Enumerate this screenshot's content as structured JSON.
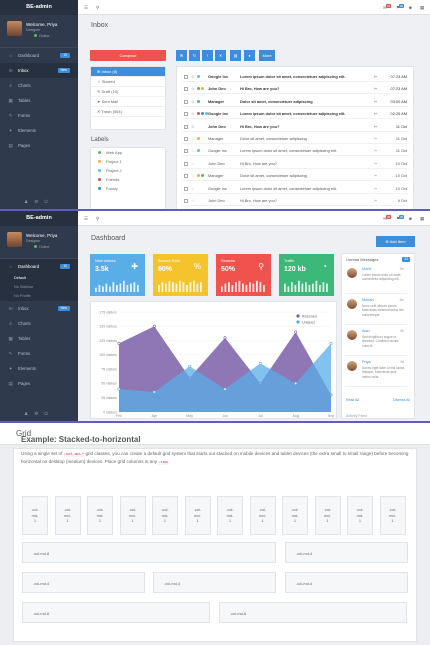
{
  "brand": "BE-admin",
  "user": {
    "name": "Welcome, Priya",
    "role": "Designer",
    "status": "Online"
  },
  "top_icons": [
    "menu-icon",
    "search-icon",
    "mail-icon",
    "bell-icon",
    "user-icon",
    "grid-icon"
  ],
  "top_badges": [
    "99",
    "99"
  ],
  "nav": [
    {
      "label": "Dashboard",
      "badge": "10",
      "icon": "dashboard-icon"
    },
    {
      "label": "Inbox",
      "badge": "New",
      "icon": "inbox-icon"
    },
    {
      "label": "Charts",
      "badge": "",
      "icon": "chart-icon"
    },
    {
      "label": "Tables",
      "badge": "",
      "icon": "table-icon"
    },
    {
      "label": "Forms",
      "badge": "",
      "icon": "form-icon"
    },
    {
      "label": "Elements",
      "badge": "",
      "icon": "elements-icon"
    },
    {
      "label": "Pages",
      "badge": "",
      "icon": "pages-icon"
    }
  ],
  "dashboard_sub": [
    "Default",
    "No Sidebar",
    "No Profile"
  ],
  "inbox": {
    "title": "Inbox",
    "compose": "Compose",
    "more": "More",
    "folders": [
      {
        "label": "Inbox (8)"
      },
      {
        "label": "Starred"
      },
      {
        "label": "Draft (10)"
      },
      {
        "label": "Sent Mail"
      },
      {
        "label": "Trash (554)"
      }
    ],
    "labels_title": "Labels",
    "labels": [
      {
        "label": "Web App",
        "color": "#5cb85c"
      },
      {
        "label": "Project 1",
        "color": "#f0ad4e"
      },
      {
        "label": "Project 2",
        "color": "#5bc0de"
      },
      {
        "label": "Friends",
        "color": "#d9534f"
      },
      {
        "label": "Family",
        "color": "#3c8ddb"
      }
    ],
    "messages": [
      {
        "sender": "Google Inc",
        "subject": "Lorem ipsum dolor sit amet, consectetuer adipiscing elit.",
        "time": "07:23 AM",
        "unread": true,
        "tags": [
          "#5bc0de"
        ]
      },
      {
        "sender": "John Deo",
        "subject": "Hi Bro, How are you?",
        "time": "07:23 AM",
        "unread": true,
        "tags": [
          "#5cb85c",
          "#f0ad4e"
        ]
      },
      {
        "sender": "Manager",
        "subject": "Dolor sit amet, consectetuer adipiscing",
        "time": "03:00 AM",
        "unread": true,
        "tags": [
          "#5cb85c"
        ]
      },
      {
        "sender": "Google Inc",
        "subject": "Lorem ipsum dolor sit amet, consectetuer adipiscing elit.",
        "time": "02:25 AM",
        "unread": true,
        "tags": [
          "#d9534f",
          "#3c8ddb",
          "#5bc0de"
        ]
      },
      {
        "sender": "John Deo",
        "subject": "Hi Bro, How are you?",
        "time": "11 Oct",
        "unread": true,
        "tags": []
      },
      {
        "sender": "Manager",
        "subject": "Dolor sit amet, consectetuer adipiscing",
        "time": "11 Oct",
        "unread": false,
        "tags": [
          "#f0ad4e"
        ]
      },
      {
        "sender": "Google Inc",
        "subject": "Lorem ipsum dolor sit amet, consectetuer adipiscing elit.",
        "time": "11 Oct",
        "unread": false,
        "tags": [
          "#5bc0de"
        ]
      },
      {
        "sender": "John Deo",
        "subject": "Hi Bro, How are you?",
        "time": "10 Oct",
        "unread": false,
        "tags": []
      },
      {
        "sender": "Manager",
        "subject": "Dolor sit amet, consectetuer adipiscing",
        "time": "10 Oct",
        "unread": false,
        "tags": [
          "#f0ad4e",
          "#5cb85c"
        ]
      },
      {
        "sender": "Google Inc",
        "subject": "Lorem ipsum dolor sit amet, consectetuer adipiscing elit.",
        "time": "10 Oct",
        "unread": false,
        "tags": []
      },
      {
        "sender": "John Deo",
        "subject": "Hi Bro, How are you?",
        "time": "9 Oct",
        "unread": false,
        "tags": []
      }
    ]
  },
  "dashboard": {
    "title": "Dashboard",
    "add_button": "Add Item",
    "tiles": [
      {
        "label": "New visitors",
        "value": "3.5k",
        "color": "#5aaee8",
        "icon": "user-add-icon",
        "bars": [
          3,
          5,
          4,
          6,
          4,
          7,
          5,
          6,
          8,
          5,
          6,
          7,
          5
        ]
      },
      {
        "label": "Bounce Rate",
        "value": "60%",
        "color": "#f5c32c",
        "icon": "percent-icon",
        "bars": [
          5,
          7,
          6,
          8,
          7,
          6,
          8,
          7,
          5,
          7,
          8,
          6,
          7
        ]
      },
      {
        "label": "Searchs",
        "value": "50%",
        "color": "#f0524e",
        "icon": "search-icon",
        "bars": [
          4,
          6,
          7,
          5,
          7,
          8,
          6,
          5,
          7,
          6,
          8,
          7,
          5
        ]
      },
      {
        "label": "Traffic",
        "value": "120 kb",
        "color": "#3cb878",
        "icon": "pie-icon",
        "bars": [
          6,
          4,
          7,
          5,
          8,
          6,
          7,
          5,
          6,
          8,
          5,
          7,
          6
        ]
      }
    ],
    "messages_title": "Unread Messages",
    "messages_badge": "23",
    "messages": [
      {
        "name": "Mohit",
        "time": "2m",
        "text": "Lorem ipsum dolor sit amet, consectetur adipiscing elit."
      },
      {
        "name": "Mohan",
        "time": "5m",
        "text": "Nunc velit ultrices ipsum. Maecenas euismod tellus nec nulla tempor."
      },
      {
        "name": "Alan",
        "time": "6h",
        "text": "Sed fringilla ex augue ut tincidunt. Curabitur iaculis nulla et."
      },
      {
        "name": "Priya",
        "time": "9d",
        "text": "Donec eget diam id nisi luctus tristique. Maecenas quis metus nulla."
      }
    ],
    "read_all": "Read All",
    "dismiss_all": "Dismiss All",
    "activity_title": "Activity Feed"
  },
  "chart_data": {
    "type": "area",
    "categories": [
      "Feb",
      "Apr",
      "May",
      "Jun",
      "Jul",
      "Aug",
      "Sep"
    ],
    "series": [
      {
        "name": "Returned",
        "color": "#7b5ea7",
        "values": [
          120,
          150,
          60,
          130,
          50,
          140,
          30
        ]
      },
      {
        "name": "Uniques",
        "color": "#5aaee8",
        "values": [
          40,
          35,
          80,
          40,
          85,
          50,
          120
        ]
      }
    ],
    "yticks": [
      "175 visitors",
      "150 visitors",
      "125 visitors",
      "100 visitors",
      "75 visitors",
      "50 visitors",
      "25 visitors",
      "0 visitors"
    ],
    "ylim": [
      0,
      175
    ],
    "legend": "top-right"
  },
  "grid": {
    "page_title": "Grid",
    "heading": "Example: Stacked-to-horizontal",
    "text_a": "Using a single set of ",
    "code_a": ".col-md-*",
    "text_b": " grid classes, you can create a default grid system that starts out stacked on mobile devices and tablet devices (the extra small to small range) before becoming horizontal on desktop (medium) devices. Place grid columns in any ",
    "code_b": ".row",
    "text_c": ".",
    "col1": ".col-\nmd-\n1",
    "row_a": [
      ".col-md-8",
      ".col-md-4"
    ],
    "row_b": [
      ".col-md-4",
      ".col-md-4",
      ".col-md-4"
    ],
    "row_c": [
      ".col-md-6",
      ".col-md-6"
    ]
  }
}
